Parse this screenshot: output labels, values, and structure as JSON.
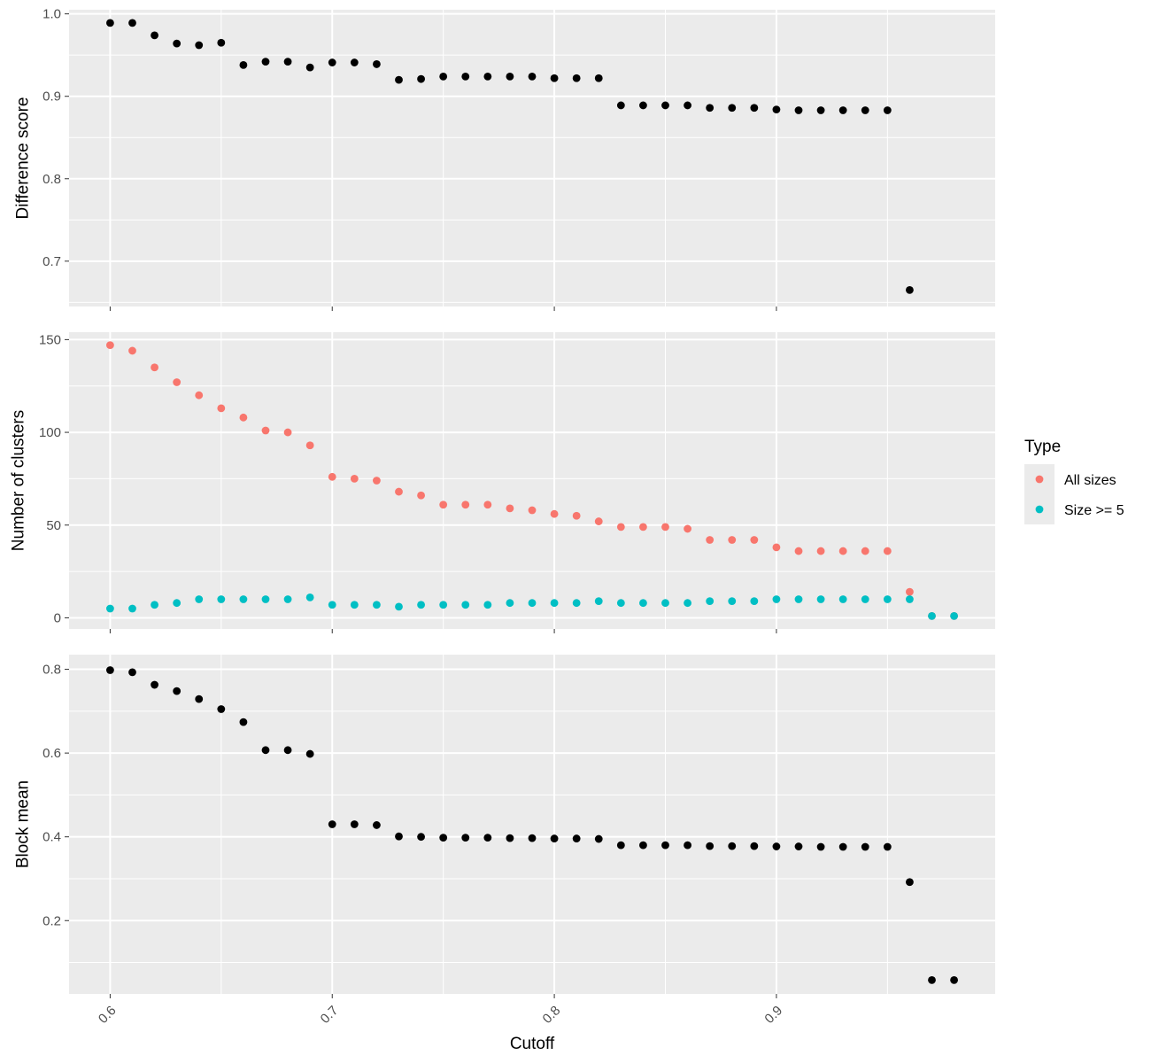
{
  "chart_data": [
    {
      "type": "scatter",
      "ylabel": "Difference score",
      "ylim": [
        0.645,
        1.005
      ],
      "yticks": [
        0.7,
        0.8,
        0.9,
        1.0
      ],
      "ytick_labels": [
        "0.7",
        "0.8",
        "0.9",
        "1.0"
      ],
      "series": [
        {
          "color": "#000000",
          "x": [
            0.6,
            0.61,
            0.62,
            0.63,
            0.64,
            0.65,
            0.66,
            0.67,
            0.68,
            0.69,
            0.7,
            0.71,
            0.72,
            0.73,
            0.74,
            0.75,
            0.76,
            0.77,
            0.78,
            0.79,
            0.8,
            0.81,
            0.82,
            0.83,
            0.84,
            0.85,
            0.86,
            0.87,
            0.88,
            0.89,
            0.9,
            0.91,
            0.92,
            0.93,
            0.94,
            0.95,
            0.96
          ],
          "y": [
            0.989,
            0.989,
            0.974,
            0.964,
            0.962,
            0.965,
            0.938,
            0.942,
            0.942,
            0.935,
            0.941,
            0.941,
            0.939,
            0.92,
            0.921,
            0.924,
            0.924,
            0.924,
            0.924,
            0.924,
            0.922,
            0.922,
            0.922,
            0.889,
            0.889,
            0.889,
            0.889,
            0.886,
            0.886,
            0.886,
            0.884,
            0.883,
            0.883,
            0.883,
            0.883,
            0.883,
            0.665
          ]
        }
      ]
    },
    {
      "type": "scatter",
      "ylabel": "Number of clusters",
      "ylim": [
        -6,
        154
      ],
      "yticks": [
        0,
        50,
        100,
        150
      ],
      "ytick_labels": [
        "0",
        "50",
        "100",
        "150"
      ],
      "legend": {
        "title": "Type",
        "position": "right"
      },
      "series": [
        {
          "name": "All sizes",
          "color": "#F8766D",
          "x": [
            0.6,
            0.61,
            0.62,
            0.63,
            0.64,
            0.65,
            0.66,
            0.67,
            0.68,
            0.69,
            0.7,
            0.71,
            0.72,
            0.73,
            0.74,
            0.75,
            0.76,
            0.77,
            0.78,
            0.79,
            0.8,
            0.81,
            0.82,
            0.83,
            0.84,
            0.85,
            0.86,
            0.87,
            0.88,
            0.89,
            0.9,
            0.91,
            0.92,
            0.93,
            0.94,
            0.95,
            0.96,
            0.97,
            0.98
          ],
          "y": [
            147,
            144,
            135,
            127,
            120,
            113,
            108,
            101,
            100,
            93,
            76,
            75,
            74,
            68,
            66,
            61,
            61,
            61,
            59,
            58,
            56,
            55,
            52,
            49,
            49,
            49,
            48,
            42,
            42,
            42,
            38,
            36,
            36,
            36,
            36,
            36,
            14,
            1,
            1
          ]
        },
        {
          "name": "Size >= 5",
          "color": "#00BFC4",
          "x": [
            0.6,
            0.61,
            0.62,
            0.63,
            0.64,
            0.65,
            0.66,
            0.67,
            0.68,
            0.69,
            0.7,
            0.71,
            0.72,
            0.73,
            0.74,
            0.75,
            0.76,
            0.77,
            0.78,
            0.79,
            0.8,
            0.81,
            0.82,
            0.83,
            0.84,
            0.85,
            0.86,
            0.87,
            0.88,
            0.89,
            0.9,
            0.91,
            0.92,
            0.93,
            0.94,
            0.95,
            0.96,
            0.97,
            0.98
          ],
          "y": [
            5,
            5,
            7,
            8,
            10,
            10,
            10,
            10,
            10,
            11,
            7,
            7,
            7,
            6,
            7,
            7,
            7,
            7,
            8,
            8,
            8,
            8,
            9,
            8,
            8,
            8,
            8,
            9,
            9,
            9,
            10,
            10,
            10,
            10,
            10,
            10,
            10,
            1,
            1
          ]
        }
      ]
    },
    {
      "type": "scatter",
      "ylabel": "Block mean",
      "xlabel": "Cutoff",
      "ylim": [
        0.025,
        0.835
      ],
      "yticks": [
        0.2,
        0.4,
        0.6,
        0.8
      ],
      "ytick_labels": [
        "0.2",
        "0.4",
        "0.6",
        "0.8"
      ],
      "series": [
        {
          "color": "#000000",
          "x": [
            0.6,
            0.61,
            0.62,
            0.63,
            0.64,
            0.65,
            0.66,
            0.67,
            0.68,
            0.69,
            0.7,
            0.71,
            0.72,
            0.73,
            0.74,
            0.75,
            0.76,
            0.77,
            0.78,
            0.79,
            0.8,
            0.81,
            0.82,
            0.83,
            0.84,
            0.85,
            0.86,
            0.87,
            0.88,
            0.89,
            0.9,
            0.91,
            0.92,
            0.93,
            0.94,
            0.95,
            0.96,
            0.97,
            0.98
          ],
          "y": [
            0.798,
            0.793,
            0.763,
            0.748,
            0.729,
            0.705,
            0.674,
            0.607,
            0.607,
            0.598,
            0.43,
            0.43,
            0.428,
            0.401,
            0.4,
            0.398,
            0.398,
            0.398,
            0.397,
            0.397,
            0.396,
            0.396,
            0.395,
            0.38,
            0.38,
            0.38,
            0.38,
            0.378,
            0.378,
            0.378,
            0.377,
            0.377,
            0.376,
            0.376,
            0.376,
            0.376,
            0.292,
            0.058,
            0.058
          ]
        }
      ]
    }
  ],
  "x_axis": {
    "label": "Cutoff",
    "xlim": [
      0.5815,
      0.9985
    ],
    "ticks": [
      0.6,
      0.7,
      0.8,
      0.9
    ],
    "tick_labels": [
      "0.6",
      "0.7",
      "0.8",
      "0.9"
    ]
  },
  "style": {
    "panel_background": "#EBEBEB",
    "grid_color": "#FFFFFF",
    "grid": true
  }
}
